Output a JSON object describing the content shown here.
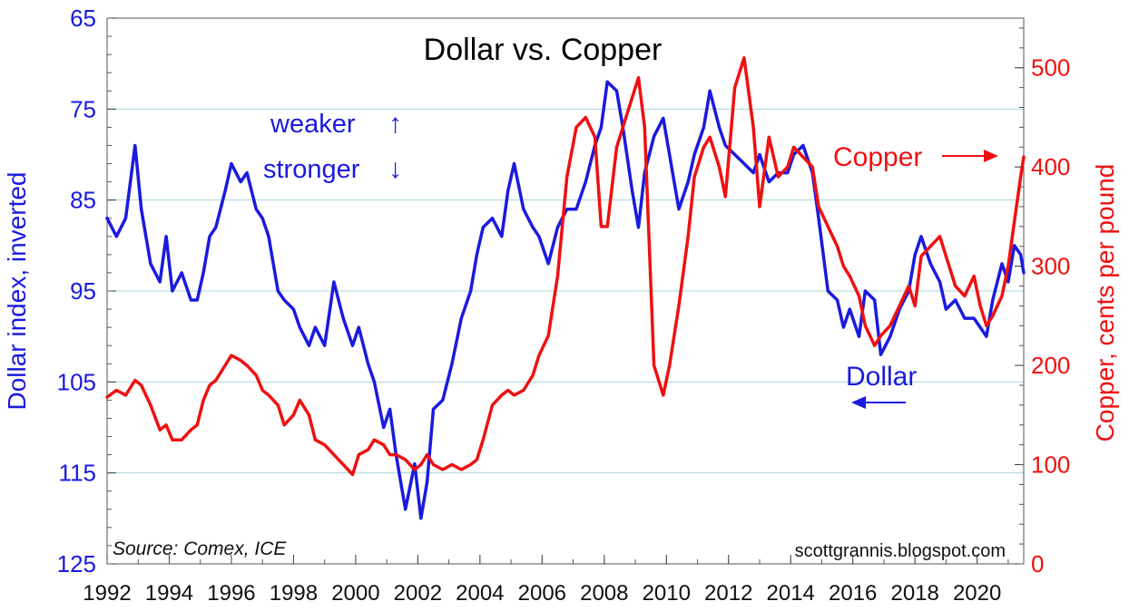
{
  "chart_data": {
    "type": "line",
    "title": "Dollar vs. Copper",
    "source": "Source: Comex, ICE",
    "credit": "scottgrannis.blogspot.com",
    "ylabel_left": "Dollar index, inverted",
    "ylabel_right": "Copper, cents per pound",
    "xlim": [
      1992,
      2021.5
    ],
    "xticks": [
      1992,
      1994,
      1996,
      1998,
      2000,
      2002,
      2004,
      2006,
      2008,
      2010,
      2012,
      2014,
      2016,
      2018,
      2020
    ],
    "y_left": {
      "lim": [
        65,
        125
      ],
      "inverted": true,
      "ticks": [
        65,
        75,
        85,
        95,
        105,
        115,
        125
      ]
    },
    "y_right": {
      "lim": [
        0,
        550
      ],
      "ticks": [
        0,
        100,
        200,
        300,
        400,
        500
      ]
    },
    "grid": true,
    "annotations": {
      "weaker": "weaker",
      "stronger": "stronger",
      "copper_label": "Copper",
      "dollar_label": "Dollar",
      "up_arrow": "↑",
      "down_arrow": "↓"
    },
    "series": [
      {
        "name": "Dollar",
        "axis": "left",
        "color": "#1a1adf",
        "points": [
          [
            1992.0,
            87
          ],
          [
            1992.3,
            89
          ],
          [
            1992.6,
            87
          ],
          [
            1992.9,
            79
          ],
          [
            1993.1,
            86
          ],
          [
            1993.4,
            92
          ],
          [
            1993.7,
            94
          ],
          [
            1993.9,
            89
          ],
          [
            1994.1,
            95
          ],
          [
            1994.4,
            93
          ],
          [
            1994.7,
            96
          ],
          [
            1994.9,
            96
          ],
          [
            1995.1,
            93
          ],
          [
            1995.3,
            89
          ],
          [
            1995.5,
            88
          ],
          [
            1995.8,
            84
          ],
          [
            1996.0,
            81
          ],
          [
            1996.3,
            83
          ],
          [
            1996.5,
            82
          ],
          [
            1996.8,
            86
          ],
          [
            1997.0,
            87
          ],
          [
            1997.2,
            89
          ],
          [
            1997.5,
            95
          ],
          [
            1997.7,
            96
          ],
          [
            1998.0,
            97
          ],
          [
            1998.2,
            99
          ],
          [
            1998.5,
            101
          ],
          [
            1998.7,
            99
          ],
          [
            1999.0,
            101
          ],
          [
            1999.3,
            94
          ],
          [
            1999.6,
            98
          ],
          [
            1999.9,
            101
          ],
          [
            2000.1,
            99
          ],
          [
            2000.4,
            103
          ],
          [
            2000.6,
            105
          ],
          [
            2000.9,
            110
          ],
          [
            2001.1,
            108
          ],
          [
            2001.3,
            113
          ],
          [
            2001.6,
            119
          ],
          [
            2001.9,
            114
          ],
          [
            2002.1,
            120
          ],
          [
            2002.3,
            116
          ],
          [
            2002.5,
            108
          ],
          [
            2002.8,
            107
          ],
          [
            2003.1,
            103
          ],
          [
            2003.4,
            98
          ],
          [
            2003.7,
            95
          ],
          [
            2003.9,
            91
          ],
          [
            2004.1,
            88
          ],
          [
            2004.4,
            87
          ],
          [
            2004.7,
            89
          ],
          [
            2004.9,
            84
          ],
          [
            2005.1,
            81
          ],
          [
            2005.4,
            86
          ],
          [
            2005.7,
            88
          ],
          [
            2005.9,
            89
          ],
          [
            2006.2,
            92
          ],
          [
            2006.5,
            88
          ],
          [
            2006.8,
            86
          ],
          [
            2007.1,
            86
          ],
          [
            2007.4,
            83
          ],
          [
            2007.7,
            79
          ],
          [
            2007.9,
            77
          ],
          [
            2008.1,
            72
          ],
          [
            2008.4,
            73
          ],
          [
            2008.6,
            77
          ],
          [
            2008.9,
            84
          ],
          [
            2009.1,
            88
          ],
          [
            2009.3,
            82
          ],
          [
            2009.6,
            78
          ],
          [
            2009.9,
            76
          ],
          [
            2010.1,
            80
          ],
          [
            2010.4,
            86
          ],
          [
            2010.7,
            83
          ],
          [
            2010.9,
            80
          ],
          [
            2011.2,
            77
          ],
          [
            2011.4,
            73
          ],
          [
            2011.7,
            77
          ],
          [
            2011.9,
            79
          ],
          [
            2012.2,
            80
          ],
          [
            2012.5,
            81
          ],
          [
            2012.8,
            82
          ],
          [
            2013.0,
            80
          ],
          [
            2013.3,
            83
          ],
          [
            2013.6,
            82
          ],
          [
            2013.9,
            82
          ],
          [
            2014.1,
            80
          ],
          [
            2014.4,
            79
          ],
          [
            2014.7,
            82
          ],
          [
            2014.9,
            87
          ],
          [
            2015.2,
            95
          ],
          [
            2015.5,
            96
          ],
          [
            2015.7,
            99
          ],
          [
            2015.9,
            97
          ],
          [
            2016.2,
            100
          ],
          [
            2016.4,
            95
          ],
          [
            2016.7,
            96
          ],
          [
            2016.9,
            102
          ],
          [
            2017.2,
            100
          ],
          [
            2017.5,
            97
          ],
          [
            2017.8,
            95
          ],
          [
            2018.0,
            91
          ],
          [
            2018.2,
            89
          ],
          [
            2018.5,
            92
          ],
          [
            2018.8,
            94
          ],
          [
            2019.0,
            97
          ],
          [
            2019.3,
            96
          ],
          [
            2019.6,
            98
          ],
          [
            2019.9,
            98
          ],
          [
            2020.1,
            99
          ],
          [
            2020.3,
            100
          ],
          [
            2020.5,
            96
          ],
          [
            2020.8,
            92
          ],
          [
            2021.0,
            94
          ],
          [
            2021.2,
            90
          ],
          [
            2021.4,
            91
          ],
          [
            2021.5,
            93
          ]
        ]
      },
      {
        "name": "Copper",
        "axis": "right",
        "color": "#ee1111",
        "points": [
          [
            1992.0,
            168
          ],
          [
            1992.3,
            175
          ],
          [
            1992.6,
            170
          ],
          [
            1992.9,
            185
          ],
          [
            1993.1,
            180
          ],
          [
            1993.4,
            160
          ],
          [
            1993.7,
            135
          ],
          [
            1993.9,
            140
          ],
          [
            1994.1,
            125
          ],
          [
            1994.4,
            125
          ],
          [
            1994.7,
            135
          ],
          [
            1994.9,
            140
          ],
          [
            1995.1,
            165
          ],
          [
            1995.3,
            180
          ],
          [
            1995.5,
            185
          ],
          [
            1995.8,
            200
          ],
          [
            1996.0,
            210
          ],
          [
            1996.3,
            205
          ],
          [
            1996.5,
            200
          ],
          [
            1996.8,
            190
          ],
          [
            1997.0,
            175
          ],
          [
            1997.2,
            170
          ],
          [
            1997.5,
            160
          ],
          [
            1997.7,
            140
          ],
          [
            1998.0,
            150
          ],
          [
            1998.2,
            165
          ],
          [
            1998.5,
            150
          ],
          [
            1998.7,
            125
          ],
          [
            1999.0,
            120
          ],
          [
            1999.3,
            110
          ],
          [
            1999.6,
            100
          ],
          [
            1999.9,
            90
          ],
          [
            2000.1,
            110
          ],
          [
            2000.4,
            115
          ],
          [
            2000.6,
            125
          ],
          [
            2000.9,
            120
          ],
          [
            2001.1,
            110
          ],
          [
            2001.3,
            110
          ],
          [
            2001.6,
            105
          ],
          [
            2001.9,
            95
          ],
          [
            2002.1,
            100
          ],
          [
            2002.3,
            110
          ],
          [
            2002.5,
            100
          ],
          [
            2002.8,
            95
          ],
          [
            2003.1,
            100
          ],
          [
            2003.4,
            95
          ],
          [
            2003.7,
            100
          ],
          [
            2003.9,
            105
          ],
          [
            2004.1,
            125
          ],
          [
            2004.4,
            160
          ],
          [
            2004.7,
            170
          ],
          [
            2004.9,
            175
          ],
          [
            2005.1,
            170
          ],
          [
            2005.4,
            175
          ],
          [
            2005.7,
            190
          ],
          [
            2005.9,
            210
          ],
          [
            2006.2,
            230
          ],
          [
            2006.5,
            290
          ],
          [
            2006.8,
            390
          ],
          [
            2007.1,
            440
          ],
          [
            2007.4,
            450
          ],
          [
            2007.7,
            430
          ],
          [
            2007.9,
            340
          ],
          [
            2008.1,
            340
          ],
          [
            2008.4,
            420
          ],
          [
            2008.6,
            440
          ],
          [
            2008.9,
            470
          ],
          [
            2009.1,
            490
          ],
          [
            2009.3,
            440
          ],
          [
            2009.6,
            200
          ],
          [
            2009.9,
            170
          ],
          [
            2010.1,
            200
          ],
          [
            2010.4,
            260
          ],
          [
            2010.7,
            330
          ],
          [
            2010.9,
            390
          ],
          [
            2011.2,
            420
          ],
          [
            2011.4,
            430
          ],
          [
            2011.7,
            400
          ],
          [
            2011.9,
            370
          ],
          [
            2012.2,
            480
          ],
          [
            2012.5,
            510
          ],
          [
            2012.8,
            440
          ],
          [
            2013.0,
            360
          ],
          [
            2013.3,
            430
          ],
          [
            2013.6,
            390
          ],
          [
            2013.9,
            400
          ],
          [
            2014.1,
            420
          ],
          [
            2014.4,
            410
          ],
          [
            2014.7,
            400
          ],
          [
            2014.9,
            360
          ],
          [
            2015.2,
            340
          ],
          [
            2015.5,
            320
          ],
          [
            2015.7,
            300
          ],
          [
            2015.9,
            290
          ],
          [
            2016.2,
            270
          ],
          [
            2016.4,
            240
          ],
          [
            2016.7,
            220
          ],
          [
            2016.9,
            230
          ],
          [
            2017.2,
            240
          ],
          [
            2017.5,
            260
          ],
          [
            2017.8,
            280
          ],
          [
            2018.0,
            260
          ],
          [
            2018.2,
            310
          ],
          [
            2018.5,
            320
          ],
          [
            2018.8,
            330
          ],
          [
            2019.0,
            310
          ],
          [
            2019.3,
            280
          ],
          [
            2019.6,
            270
          ],
          [
            2019.9,
            290
          ],
          [
            2020.1,
            260
          ],
          [
            2020.3,
            240
          ],
          [
            2020.5,
            250
          ],
          [
            2020.8,
            270
          ],
          [
            2021.0,
            300
          ],
          [
            2021.2,
            345
          ],
          [
            2021.4,
            390
          ],
          [
            2021.5,
            410
          ]
        ]
      }
    ]
  }
}
